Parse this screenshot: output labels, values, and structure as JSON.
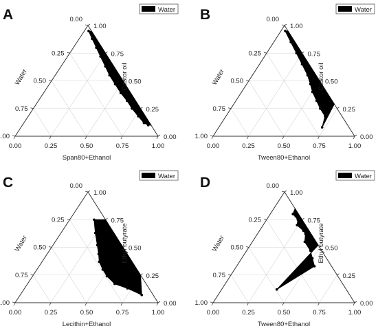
{
  "legend_label": "Water",
  "colors": {
    "region": "#000000",
    "grid": "#d4d4d4",
    "frame": "#333333"
  },
  "chart_data": [
    {
      "type": "ternary-area",
      "panel_label": "A",
      "legend": "Water",
      "axes": {
        "top": "",
        "left": "Water",
        "right": "Castor oil",
        "bottom": "Span80+Ethanol"
      },
      "left_ticks": [
        "0.00",
        "0.25",
        "0.50",
        "0.75",
        "1.00"
      ],
      "right_ticks": [
        "1.00",
        "0.75",
        "0.50",
        "0.25",
        "0.00"
      ],
      "bottom_ticks": [
        "0.00",
        "0.25",
        "0.50",
        "0.75",
        "1.00"
      ],
      "top_label": "0.00",
      "points": [
        {
          "oil": 0.95,
          "water": 0.02
        },
        {
          "oil": 0.88,
          "water": 0.03
        },
        {
          "oil": 0.8,
          "water": 0.04
        },
        {
          "oil": 0.72,
          "water": 0.05
        },
        {
          "oil": 0.63,
          "water": 0.06
        },
        {
          "oil": 0.55,
          "water": 0.07
        },
        {
          "oil": 0.47,
          "water": 0.07
        },
        {
          "oil": 0.39,
          "water": 0.07
        },
        {
          "oil": 0.32,
          "water": 0.06
        },
        {
          "oil": 0.25,
          "water": 0.06
        },
        {
          "oil": 0.18,
          "water": 0.05
        },
        {
          "oil": 0.12,
          "water": 0.04
        },
        {
          "oil": 0.1,
          "water": 0.02
        },
        {
          "oil": 0.1,
          "water": 0.0
        },
        {
          "oil": 0.5,
          "water": 0.0
        },
        {
          "oil": 0.95,
          "water": 0.0
        }
      ]
    },
    {
      "type": "ternary-area",
      "panel_label": "B",
      "legend": "Water",
      "axes": {
        "top": "",
        "left": "Water",
        "right": "Castor oil",
        "bottom": "Tween80+Ethanol"
      },
      "left_ticks": [
        "0.00",
        "0.25",
        "0.50",
        "0.75",
        "1.00"
      ],
      "right_ticks": [
        "1.00",
        "0.75",
        "0.50",
        "0.25",
        "0.00"
      ],
      "bottom_ticks": [
        "0.00",
        "0.25",
        "0.50",
        "0.75",
        "1.00"
      ],
      "top_label": "0.00",
      "points": [
        {
          "oil": 0.95,
          "water": 0.02
        },
        {
          "oil": 0.85,
          "water": 0.03
        },
        {
          "oil": 0.75,
          "water": 0.04
        },
        {
          "oil": 0.65,
          "water": 0.05
        },
        {
          "oil": 0.55,
          "water": 0.06
        },
        {
          "oil": 0.47,
          "water": 0.08
        },
        {
          "oil": 0.4,
          "water": 0.1
        },
        {
          "oil": 0.32,
          "water": 0.11
        },
        {
          "oil": 0.25,
          "water": 0.12
        },
        {
          "oil": 0.18,
          "water": 0.12
        },
        {
          "oil": 0.08,
          "water": 0.19
        },
        {
          "oil": 0.29,
          "water": 0.0
        },
        {
          "oil": 0.6,
          "water": 0.0
        },
        {
          "oil": 0.95,
          "water": 0.0
        }
      ]
    },
    {
      "type": "ternary-area",
      "panel_label": "C",
      "legend": "Water",
      "axes": {
        "top": "",
        "left": "Water",
        "right": "Ethyl butyrate",
        "bottom": "Lecithin+Ethanol"
      },
      "left_ticks": [
        "0.00",
        "0.25",
        "0.50",
        "0.75",
        "1.00"
      ],
      "right_ticks": [
        "1.00",
        "0.75",
        "0.50",
        "0.25",
        "0.00"
      ],
      "bottom_ticks": [
        "0.00",
        "0.25",
        "0.50",
        "0.75",
        "1.00"
      ],
      "top_label": "0.00",
      "points": [
        {
          "oil": 0.75,
          "water": 0.08
        },
        {
          "oil": 0.63,
          "water": 0.13
        },
        {
          "oil": 0.52,
          "water": 0.17
        },
        {
          "oil": 0.44,
          "water": 0.2
        },
        {
          "oil": 0.37,
          "water": 0.23
        },
        {
          "oil": 0.3,
          "water": 0.24
        },
        {
          "oil": 0.24,
          "water": 0.24
        },
        {
          "oil": 0.17,
          "water": 0.22
        },
        {
          "oil": 0.13,
          "water": 0.15
        },
        {
          "oil": 0.07,
          "water": 0.08
        },
        {
          "oil": 0.25,
          "water": 0.0
        },
        {
          "oil": 0.5,
          "water": 0.0
        },
        {
          "oil": 0.75,
          "water": 0.0
        }
      ]
    },
    {
      "type": "ternary-area",
      "panel_label": "D",
      "legend": "Water",
      "axes": {
        "top": "",
        "left": "Water",
        "right": "Ethyl butyrate",
        "bottom": "Tween80+Ethanol"
      },
      "left_ticks": [
        "0.00",
        "0.25",
        "0.50",
        "0.75",
        "1.00"
      ],
      "right_ticks": [
        "1.00",
        "0.75",
        "0.50",
        "0.25",
        "0.00"
      ],
      "bottom_ticks": [
        "0.00",
        "0.25",
        "0.50",
        "0.75",
        "1.00"
      ],
      "top_label": "0.00",
      "points": [
        {
          "oil": 0.85,
          "water": 0.0
        },
        {
          "oil": 0.8,
          "water": 0.04
        },
        {
          "oil": 0.75,
          "water": 0.03
        },
        {
          "oil": 0.7,
          "water": 0.06
        },
        {
          "oil": 0.65,
          "water": 0.04
        },
        {
          "oil": 0.62,
          "water": 0.04
        },
        {
          "oil": 0.55,
          "water": 0.08
        },
        {
          "oil": 0.47,
          "water": 0.08
        },
        {
          "oil": 0.4,
          "water": 0.1
        },
        {
          "oil": 0.33,
          "water": 0.12
        },
        {
          "oil": 0.12,
          "water": 0.49
        },
        {
          "oil": 0.52,
          "water": 0.0
        },
        {
          "oil": 0.8,
          "water": 0.0
        }
      ]
    }
  ]
}
